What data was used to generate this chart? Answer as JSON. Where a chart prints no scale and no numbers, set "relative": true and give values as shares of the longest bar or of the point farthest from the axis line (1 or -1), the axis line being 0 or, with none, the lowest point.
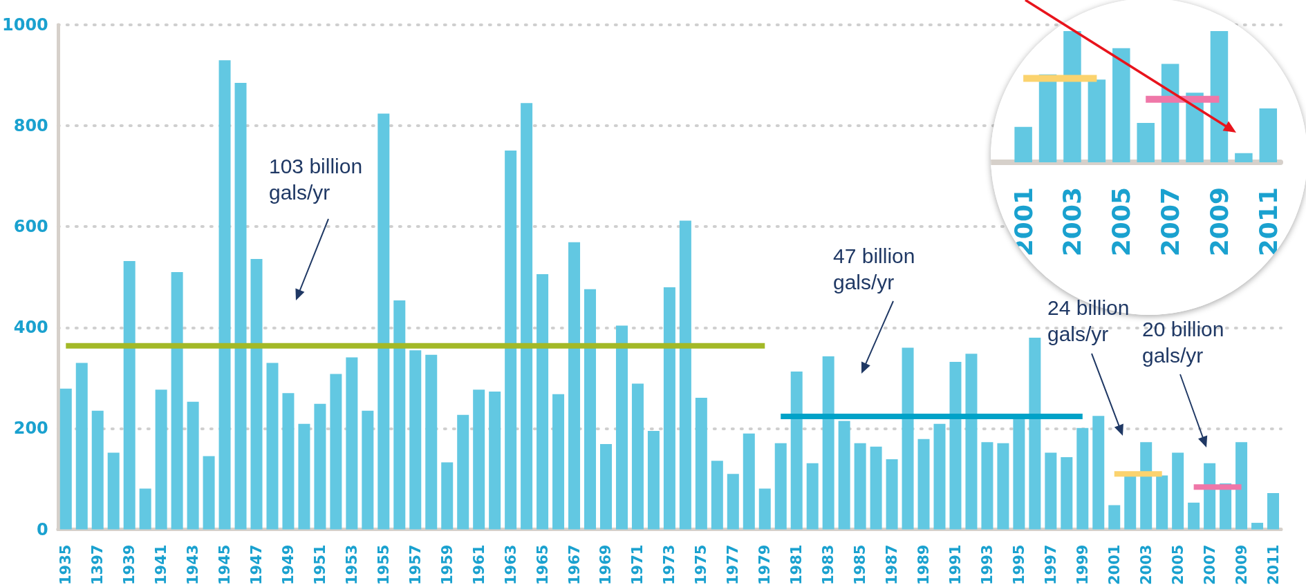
{
  "chart_data": [
    {
      "type": "bar",
      "categories": [
        "1935",
        null,
        "1397",
        null,
        "1939",
        null,
        "1941",
        null,
        "1943",
        null,
        "1945",
        null,
        "1947",
        null,
        "1949",
        null,
        "1951",
        null,
        "1953",
        null,
        "1955",
        null,
        "1957",
        null,
        "1959",
        null,
        "1961",
        null,
        "1963",
        null,
        "1965",
        null,
        "1967",
        null,
        "1969",
        null,
        "1971",
        null,
        "1973",
        null,
        "1975",
        null,
        "1977",
        null,
        "1979",
        null,
        "1981",
        null,
        "1983",
        null,
        "1985",
        null,
        "1987",
        null,
        "1989",
        null,
        "1991",
        null,
        "1993",
        null,
        "1995",
        null,
        "1997",
        null,
        "1999",
        null,
        "2001",
        null,
        "2003",
        null,
        "2005",
        null,
        "2007",
        null,
        "2009",
        null,
        "2011"
      ],
      "series": [
        {
          "color": "#62c8e2",
          "values": [
            279,
            330,
            235,
            152,
            532,
            81,
            277,
            510,
            253,
            145,
            930,
            885,
            536,
            330,
            270,
            209,
            249,
            308,
            341,
            235,
            824,
            454,
            355,
            346,
            133,
            227,
            277,
            273,
            751,
            845,
            506,
            268,
            569,
            476,
            169,
            404,
            289,
            195,
            480,
            612,
            261,
            136,
            110,
            190,
            81,
            171,
            313,
            131,
            343,
            215,
            171,
            164,
            139,
            360,
            179,
            209,
            332,
            348,
            173,
            171,
            219,
            380,
            152,
            143,
            201,
            225,
            48,
            107,
            173,
            107,
            152,
            53,
            131,
            91,
            173,
            13,
            72
          ]
        },
        {
          "type": "line",
          "color": "#a3b927",
          "values": [
            364,
            364,
            364,
            364,
            364,
            364,
            364,
            364,
            364,
            364,
            364,
            364,
            364,
            364,
            364,
            364,
            364,
            364,
            364,
            364,
            364,
            364,
            364,
            364,
            364,
            364,
            364,
            364,
            364,
            364,
            364,
            364,
            364,
            364,
            364,
            364,
            364,
            364,
            364,
            364,
            364,
            364,
            364,
            364,
            364,
            null,
            null,
            null,
            null,
            null,
            null,
            null,
            null,
            null,
            null,
            null,
            null,
            null,
            null,
            null,
            null,
            null,
            null,
            null,
            null,
            null,
            null,
            null,
            null,
            null,
            null,
            null,
            null,
            null,
            null,
            null,
            null
          ]
        },
        {
          "type": "line",
          "color": "#00a2c8",
          "values": [
            null,
            null,
            null,
            null,
            null,
            null,
            null,
            null,
            null,
            null,
            null,
            null,
            null,
            null,
            null,
            null,
            null,
            null,
            null,
            null,
            null,
            null,
            null,
            null,
            null,
            null,
            null,
            null,
            null,
            null,
            null,
            null,
            null,
            null,
            null,
            null,
            null,
            null,
            null,
            null,
            null,
            null,
            null,
            null,
            null,
            224,
            224,
            224,
            224,
            224,
            224,
            224,
            224,
            224,
            224,
            224,
            224,
            224,
            224,
            224,
            224,
            224,
            224,
            224,
            224,
            null,
            null,
            null,
            null,
            null,
            null,
            null,
            null,
            null,
            null,
            null,
            null
          ]
        },
        {
          "type": "line",
          "color": "#fbd36e",
          "values": [
            null,
            null,
            null,
            null,
            null,
            null,
            null,
            null,
            null,
            null,
            null,
            null,
            null,
            null,
            null,
            null,
            null,
            null,
            null,
            null,
            null,
            null,
            null,
            null,
            null,
            null,
            null,
            null,
            null,
            null,
            null,
            null,
            null,
            null,
            null,
            null,
            null,
            null,
            null,
            null,
            null,
            null,
            null,
            null,
            null,
            null,
            null,
            null,
            null,
            null,
            null,
            null,
            null,
            null,
            null,
            null,
            null,
            null,
            null,
            null,
            null,
            null,
            null,
            null,
            null,
            null,
            110,
            110,
            110,
            110,
            null,
            null,
            null,
            null,
            null,
            null,
            null
          ]
        },
        {
          "type": "line",
          "color": "#ef77a8",
          "values": [
            null,
            null,
            null,
            null,
            null,
            null,
            null,
            null,
            null,
            null,
            null,
            null,
            null,
            null,
            null,
            null,
            null,
            null,
            null,
            null,
            null,
            null,
            null,
            null,
            null,
            null,
            null,
            null,
            null,
            null,
            null,
            null,
            null,
            null,
            null,
            null,
            null,
            null,
            null,
            null,
            null,
            null,
            null,
            null,
            null,
            null,
            null,
            null,
            null,
            null,
            null,
            null,
            null,
            null,
            null,
            null,
            null,
            null,
            null,
            null,
            null,
            null,
            null,
            null,
            null,
            null,
            null,
            null,
            null,
            null,
            null,
            84,
            84,
            84,
            84,
            null,
            null
          ]
        }
      ],
      "ylim": [
        0,
        1000
      ],
      "yticks": [
        0,
        200,
        400,
        600,
        800,
        1000
      ],
      "grid": "y",
      "marker": "none",
      "line_style": "solid",
      "annotations": [
        "103 billion gals/yr",
        "47 billion gals/yr",
        "24 billion gals/yr",
        "20 billion gals/yr"
      ]
    },
    {
      "type": "bar",
      "relative": true,
      "tick_labels": "x",
      "categories": [
        null,
        "2001",
        null,
        "2003",
        null,
        "2005",
        null,
        "2007",
        null,
        "2009",
        null,
        "2011"
      ],
      "series": [
        {
          "color": "#62c8e2",
          "values": [
            null,
            0.27,
            0.67,
            1,
            0.63,
            0.87,
            0.3,
            0.75,
            0.53,
            1,
            0.07,
            0.41
          ]
        },
        {
          "type": "line",
          "color": "#fbd36e",
          "values": [
            null,
            0.64,
            0.64,
            0.64,
            0.64,
            null,
            null,
            null,
            null,
            null,
            null,
            null
          ]
        },
        {
          "type": "line",
          "color": "#ef77a8",
          "values": [
            null,
            null,
            null,
            null,
            null,
            null,
            0.48,
            0.48,
            0.48,
            0.48,
            null,
            null
          ]
        }
      ],
      "marker": "none",
      "line_style": "solid"
    }
  ]
}
